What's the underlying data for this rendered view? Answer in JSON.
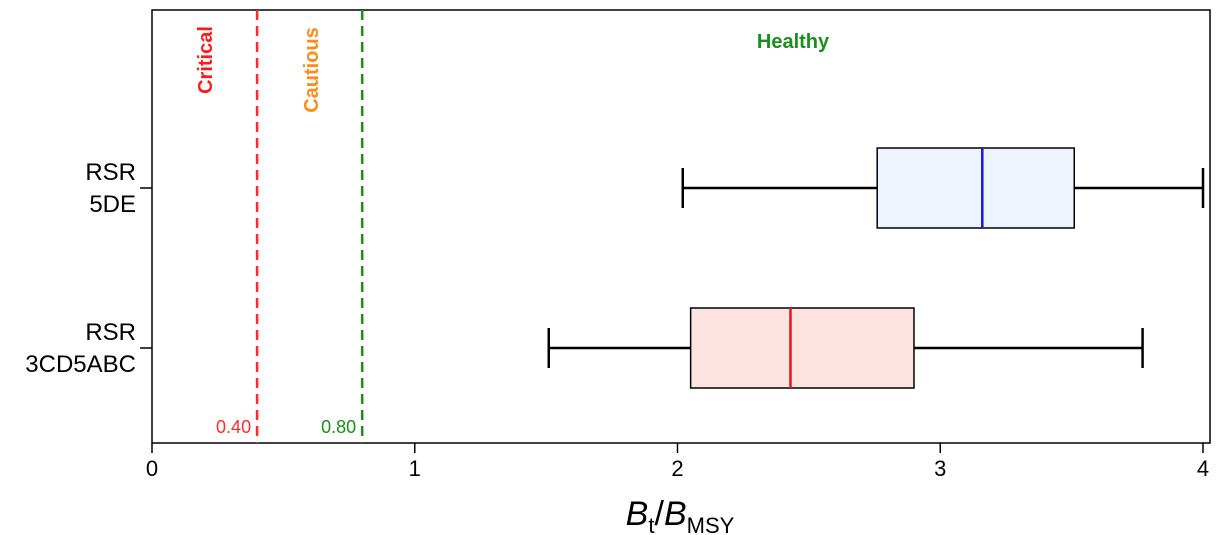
{
  "chart_data": {
    "type": "boxplot",
    "orientation": "horizontal",
    "xlim": [
      0,
      4.05
    ],
    "xticks": [
      "0",
      "1",
      "2",
      "3",
      "4"
    ],
    "xlabel": {
      "main": "B",
      "t_sub": "t",
      "slash": "/",
      "main2": "B",
      "msy_sub": "MSY"
    },
    "categories": [
      {
        "label_line1": "RSR",
        "label_line2": "5DE",
        "whisker_low": 2.02,
        "q1": 2.76,
        "median": 3.16,
        "q3": 3.51,
        "whisker_high": 4.0,
        "fill": "#eef4fd",
        "median_color": "#1515e6"
      },
      {
        "label_line1": "RSR",
        "label_line2": "3CD5ABC",
        "whisker_low": 1.51,
        "q1": 2.05,
        "median": 2.43,
        "q3": 2.9,
        "whisker_high": 3.77,
        "fill": "#fde3e0",
        "median_color": "#e61515"
      }
    ],
    "reference_lines": [
      {
        "value": 0.4,
        "label": "0.40",
        "color": "#ff2a2a"
      },
      {
        "value": 0.8,
        "label": "0.80",
        "color": "#1a8f1a"
      }
    ],
    "zones": [
      {
        "label": "Critical",
        "color": "#ff1a1a"
      },
      {
        "label": "Cautious",
        "color": "#ff8c1a"
      },
      {
        "label": "Healthy",
        "color": "#1a8f1a"
      }
    ]
  }
}
